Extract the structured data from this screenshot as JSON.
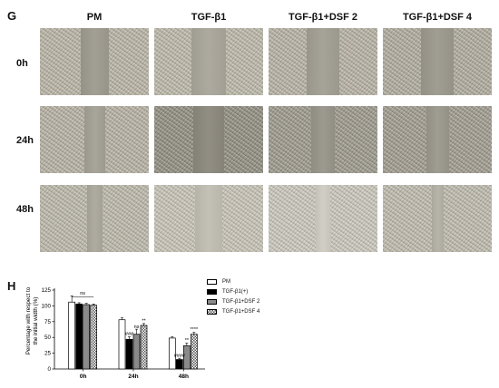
{
  "figure_g": {
    "letter": "G",
    "columns": [
      "PM",
      "TGF-β1",
      "TGF-β1+DSF 2",
      "TGF-β1+DSF 4"
    ],
    "rows": [
      "0h",
      "24h",
      "48h"
    ],
    "scratch_width_fraction": [
      [
        0.26,
        0.32,
        0.3,
        0.3
      ],
      [
        0.19,
        0.28,
        0.22,
        0.21
      ],
      [
        0.14,
        0.25,
        0.13,
        0.11
      ]
    ]
  },
  "figure_h": {
    "letter": "H",
    "ylabel": "Percentage with respect to the initial width (%)",
    "ylabel_line1": "Percentage with respect to",
    "ylabel_line2": "the initial width (%)"
  },
  "chart_data": {
    "type": "bar",
    "title": "",
    "xlabel": "",
    "ylabel": "Percentage with respect to the initial width (%)",
    "categories": [
      "0h",
      "24h",
      "48h"
    ],
    "ylim": [
      0,
      125
    ],
    "yticks": [
      "0",
      "25",
      "50",
      "75",
      "100",
      "125"
    ],
    "legend_position": "right",
    "series": [
      {
        "name": "PM",
        "values": [
          106,
          78,
          49
        ],
        "errors": [
          10,
          3,
          2
        ],
        "fill": "#ffffff",
        "pattern": "none"
      },
      {
        "name": "TGF-β1(+)",
        "values": [
          103,
          47,
          15
        ],
        "errors": [
          2,
          4,
          2
        ],
        "fill": "#000000",
        "pattern": "none"
      },
      {
        "name": "TGF-β1+DSF 2",
        "values": [
          102,
          55,
          37
        ],
        "errors": [
          2,
          8,
          4
        ],
        "fill": "#8a8a8a",
        "pattern": "none"
      },
      {
        "name": "TGF-β1+DSF 4",
        "values": [
          101,
          69,
          55
        ],
        "errors": [
          2,
          3,
          3
        ],
        "fill": "#ffffff",
        "pattern": "checker"
      }
    ],
    "annotations": [
      {
        "text": "ns",
        "category": 0,
        "series": -1,
        "bracket": [
          0,
          3
        ],
        "y": 118
      },
      {
        "text": "###",
        "category": 1,
        "series": 1,
        "y": 53
      },
      {
        "text": "ns",
        "category": 1,
        "series": 2,
        "y": 65
      },
      {
        "text": "**",
        "category": 1,
        "series": 3,
        "y": 74
      },
      {
        "text": "####",
        "category": 2,
        "series": 1,
        "y": 19
      },
      {
        "text": "**",
        "category": 2,
        "series": 2,
        "y": 43
      },
      {
        "text": "****",
        "category": 2,
        "series": 3,
        "y": 60
      }
    ]
  }
}
